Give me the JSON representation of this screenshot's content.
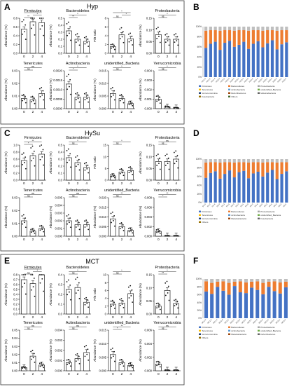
{
  "panel_letters": [
    "A",
    "B",
    "C",
    "D",
    "E",
    "F"
  ],
  "panel_titles": {
    "A": "Hyp",
    "C": "HySu",
    "E": "MCT"
  },
  "bar_x_labels": [
    "0",
    "2",
    "4"
  ],
  "y_labels": {
    "abundance": "Abundance (%)",
    "ratio": "F/B ratio"
  },
  "sig": {
    "ns": "ns",
    "one": "*",
    "two": "**"
  },
  "colors": {
    "bar": "#ffffff",
    "edge": "#000000",
    "dot": "#111111",
    "blue": "#4472c4",
    "orange": "#ed7d31",
    "legend_text": "#333333"
  },
  "chart_data": [
    {
      "panel": "A",
      "type": "bar",
      "subcharts": [
        {
          "title": "Firmicutes",
          "values": [
            0.55,
            0.72,
            0.7
          ],
          "ylim": [
            0,
            0.8
          ],
          "ticks": [
            "0.0",
            "0.2",
            "0.4",
            "0.6",
            "0.8"
          ],
          "sig": [
            "**",
            "*",
            "*"
          ]
        },
        {
          "title": "Bacteroidetes",
          "values": [
            0.32,
            0.2,
            0.17
          ],
          "ylim": [
            0,
            0.5
          ],
          "ticks": [
            "0.0",
            "0.1",
            "0.2",
            "0.3",
            "0.4",
            "0.5"
          ],
          "sig": [
            "**",
            "*"
          ]
        },
        {
          "title": "",
          "ylabel": "ratio",
          "values": [
            1.5,
            4.2,
            3.3
          ],
          "ylim": [
            0,
            8
          ],
          "ticks": [
            "0",
            "2",
            "4",
            "6",
            "8"
          ],
          "sig": [
            "ns",
            "*",
            "*"
          ]
        },
        {
          "title": "Proteobacteria",
          "values": [
            0.08,
            0.06,
            0.06
          ],
          "ylim": [
            0,
            0.15
          ],
          "ticks": [
            "0.00",
            "0.05",
            "0.10",
            "0.15"
          ],
          "sig": [
            "ns",
            "*"
          ]
        },
        {
          "title": "Tenericutes",
          "values": [
            0.008,
            0.007,
            0.012
          ],
          "ylim": [
            0,
            0.03
          ],
          "ticks": [
            "0.00",
            "0.01",
            "0.02",
            "0.03"
          ],
          "sig": [
            "ns",
            "ns"
          ]
        },
        {
          "title": "Actinobacteria",
          "values": [
            0.0013,
            0.0006,
            0.0006
          ],
          "ylim": [
            0,
            0.002
          ],
          "ticks": [
            "0.0000",
            "0.0005",
            "0.0010",
            "0.0015",
            "0.0020"
          ],
          "sig": [
            "*",
            "*"
          ]
        },
        {
          "title": "unidentified_Bacteria",
          "values": [
            0.006,
            0.004,
            0.002
          ],
          "ylim": [
            0,
            0.015
          ],
          "ticks": [
            "0.000",
            "0.005",
            "0.010",
            "0.015"
          ],
          "sig": [
            "ns",
            "*"
          ]
        },
        {
          "title": "Verrucomicrobia",
          "values": [
            0.001,
            0.0002,
            0.0001
          ],
          "ylim": [
            0,
            0.004
          ],
          "ticks": [
            "0.000",
            "0.001",
            "0.002",
            "0.003",
            "0.004"
          ],
          "sig": [
            "ns",
            "*"
          ]
        }
      ]
    },
    {
      "panel": "C",
      "type": "bar",
      "subcharts": [
        {
          "title": "Firmicutes",
          "values": [
            0.56,
            0.7,
            0.74
          ],
          "ylim": [
            0,
            1.0
          ],
          "ticks": [
            "0.0",
            "0.2",
            "0.4",
            "0.6",
            "0.8",
            "1.0"
          ],
          "sig": [
            "*",
            "**"
          ]
        },
        {
          "title": "Bacteroidetes",
          "values": [
            0.32,
            0.25,
            0.18
          ],
          "ylim": [
            0,
            0.5
          ],
          "ticks": [
            "0.0",
            "0.1",
            "0.2",
            "0.3",
            "0.4",
            "0.5"
          ],
          "sig": [
            "ns",
            "*"
          ]
        },
        {
          "title": "",
          "ylabel": "ratio",
          "values": [
            1.8,
            3.5,
            4.1
          ],
          "ylim": [
            0,
            15
          ],
          "ticks": [
            "0",
            "5",
            "10",
            "15"
          ],
          "sig": [
            "ns",
            "*"
          ]
        },
        {
          "title": "Proteobacteria",
          "values": [
            0.08,
            0.08,
            0.09
          ],
          "ylim": [
            0,
            0.15
          ],
          "ticks": [
            "0.00",
            "0.05",
            "0.10",
            "0.15"
          ],
          "sig": [
            "ns",
            "ns"
          ]
        },
        {
          "title": "Tenericutes",
          "values": [
            0.012,
            0.004,
            0.006
          ],
          "ylim": [
            0,
            0.03
          ],
          "ticks": [
            "0.00",
            "0.01",
            "0.02",
            "0.03"
          ],
          "sig": [
            "ns",
            "ns"
          ]
        },
        {
          "title": "Actinobacteria",
          "values": [
            0.002,
            0.0015,
            0.0015
          ],
          "ylim": [
            0,
            0.005
          ],
          "ticks": [
            "0.000",
            "0.001",
            "0.002",
            "0.003",
            "0.004",
            "0.005"
          ],
          "sig": [
            "ns",
            "ns"
          ]
        },
        {
          "title": "unidentified_Bacteria",
          "values": [
            0.009,
            0.005,
            0.003
          ],
          "ylim": [
            0,
            0.02
          ],
          "ticks": [
            "0.000",
            "0.005",
            "0.010",
            "0.015",
            "0.020"
          ],
          "sig": [
            "ns",
            "**"
          ]
        },
        {
          "title": "Verrucomicrobia",
          "values": [
            0.001,
            0.0001,
            0.0001
          ],
          "ylim": [
            0,
            0.008
          ],
          "ticks": [
            "0.000",
            "0.002",
            "0.004",
            "0.006",
            "0.008"
          ],
          "sig": [
            "*",
            "**"
          ]
        }
      ]
    },
    {
      "panel": "E",
      "type": "bar",
      "subcharts": [
        {
          "title": "Firmicutes",
          "values": [
            0.7,
            0.62,
            0.8
          ],
          "ylim": [
            0,
            0.8
          ],
          "ticks": [
            "0.0",
            "0.1",
            "0.2",
            "0.3",
            "0.4",
            "0.5",
            "0.6",
            "0.7",
            "0.8"
          ],
          "sig": [
            "ns",
            "*",
            "*"
          ]
        },
        {
          "title": "Bacteroidetes",
          "values": [
            0.25,
            0.27,
            0.12
          ],
          "ylim": [
            0,
            0.4
          ],
          "ticks": [
            "0.0",
            "0.1",
            "0.2",
            "0.3",
            "0.4"
          ],
          "sig": [
            "ns",
            "*"
          ]
        },
        {
          "title": "",
          "ylabel": "ratio",
          "values": [
            2.5,
            2.8,
            5.2
          ],
          "ylim": [
            0,
            10
          ],
          "ticks": [
            "0",
            "2",
            "4",
            "6",
            "8",
            "10"
          ],
          "sig": [
            "ns",
            "*"
          ]
        },
        {
          "title": "Proteobacteria",
          "values": [
            0.03,
            0.09,
            0.04
          ],
          "ylim": [
            0,
            0.15
          ],
          "ticks": [
            "0.00",
            "0.05",
            "0.10",
            "0.15"
          ],
          "sig": [
            "**",
            "*"
          ]
        },
        {
          "title": "Tenericutes",
          "values": [
            0.004,
            0.018,
            0.007
          ],
          "ylim": [
            0,
            0.05
          ],
          "ticks": [
            "0.00",
            "0.01",
            "0.02",
            "0.03",
            "0.04",
            "0.05"
          ],
          "sig": [
            "ns",
            "ns"
          ]
        },
        {
          "title": "Actinobacteria",
          "values": [
            0.0008,
            0.0012,
            0.0018
          ],
          "ylim": [
            0,
            0.004
          ],
          "ticks": [
            "0.000",
            "0.001",
            "0.002",
            "0.003",
            "0.004"
          ],
          "sig": [
            "ns",
            "ns"
          ]
        },
        {
          "title": "unidentified_Bacteria",
          "values": [
            0.006,
            0.003,
            0.002
          ],
          "ylim": [
            0,
            0.015
          ],
          "ticks": [
            "0.000",
            "0.005",
            "0.010",
            "0.015"
          ],
          "sig": [
            "*",
            "**"
          ]
        },
        {
          "title": "Verrucomicrobia",
          "values": [
            0.001,
            0.0001,
            0.0001
          ],
          "ylim": [
            0,
            0.006
          ],
          "ticks": [
            "0.000",
            "0.002",
            "0.004",
            "0.006"
          ],
          "sig": [
            "ns",
            "ns"
          ]
        }
      ]
    },
    {
      "panel": "B",
      "type": "stacked_bar",
      "categories": [
        "HG1-0",
        "HG1-2",
        "HG1-4",
        "HG2-0",
        "HG2-2",
        "HG2-4",
        "HG3-0",
        "HG3-2",
        "HG3-4",
        "HG4-0",
        "HG4-2",
        "HG4-4",
        "HG5-0",
        "HG5-2",
        "HG5-4",
        "HG6-0",
        "HG6-2",
        "HG6-4"
      ],
      "ticks": [
        "0%",
        "20%",
        "40%",
        "60%",
        "80%",
        "100%"
      ],
      "legend": [
        "Firmicutes",
        "Bacteroidetes",
        "Proteobacteria",
        "Tenericutes",
        "Actinobacteria",
        "unidentified_Bacteria",
        "Verrucomicrobia",
        "Deferribacteres",
        "Melainabacteria",
        "Fusobacteria",
        "Others"
      ],
      "series": [
        {
          "name": "Firmicutes",
          "values": [
            58,
            66,
            70,
            54,
            68,
            72,
            60,
            64,
            70,
            56,
            66,
            71,
            59,
            67,
            73,
            55,
            65,
            69
          ]
        },
        {
          "name": "Bacteroidetes",
          "values": [
            34,
            27,
            23,
            38,
            25,
            21,
            32,
            29,
            23,
            36,
            27,
            22,
            33,
            26,
            20,
            37,
            28,
            24
          ]
        },
        {
          "name": "Others",
          "values": [
            8,
            7,
            7,
            8,
            7,
            7,
            8,
            7,
            7,
            8,
            7,
            7,
            8,
            7,
            7,
            8,
            7,
            7
          ]
        }
      ]
    },
    {
      "panel": "D",
      "type": "stacked_bar",
      "categories": [
        "D1-0",
        "D1-2",
        "D1-4",
        "D2-0",
        "D2-2",
        "D2-4",
        "D3-0",
        "D3-2",
        "D3-4",
        "D4-0",
        "D4-2",
        "D4-4",
        "D5-0",
        "D5-2",
        "D5-4",
        "D6-0",
        "D6-2",
        "D6-4"
      ],
      "ticks": [
        "0%",
        "20%",
        "40%",
        "60%",
        "80%",
        "100%"
      ],
      "legend": [
        "Firmicutes",
        "Bacteroidetes",
        "Proteobacteria",
        "Tenericutes",
        "Actinobacteria",
        "unidentified_Bacteria",
        "Verrucomicrobia",
        "Melainabacteria",
        "Fusobacteria",
        "Others"
      ],
      "series": [
        {
          "name": "Firmicutes",
          "values": [
            57,
            68,
            72,
            55,
            66,
            74,
            58,
            70,
            73,
            56,
            67,
            71,
            60,
            69,
            75,
            54,
            66,
            72
          ]
        },
        {
          "name": "Bacteroidetes",
          "values": [
            35,
            25,
            21,
            37,
            27,
            19,
            34,
            23,
            20,
            36,
            26,
            22,
            32,
            24,
            18,
            38,
            27,
            21
          ]
        },
        {
          "name": "Others",
          "values": [
            8,
            7,
            7,
            8,
            7,
            7,
            8,
            7,
            7,
            8,
            7,
            7,
            8,
            7,
            7,
            8,
            7,
            7
          ]
        }
      ]
    },
    {
      "panel": "F",
      "type": "stacked_bar",
      "categories": [
        "MC1-0",
        "MC1-2",
        "MC1-4",
        "MC2-0",
        "MC2-2",
        "MC2-4",
        "MC3-0",
        "MC3-2",
        "MC3-4",
        "MC4-0",
        "MC4-2",
        "MC4-4",
        "MC5-0",
        "MC5-2",
        "MC5-4"
      ],
      "ticks": [
        "0%",
        "20%",
        "40%",
        "60%",
        "80%",
        "100%"
      ],
      "legend": [
        "Firmicutes",
        "Bacteroidetes",
        "Proteobacteria",
        "Tenericutes",
        "Actinobacteria",
        "unidentified_Bacteria",
        "Verrucomicrobia",
        "Melainabacteria",
        "Deferribacteres",
        "Others"
      ],
      "series": [
        {
          "name": "Firmicutes",
          "values": [
            68,
            62,
            80,
            70,
            60,
            82,
            66,
            64,
            78,
            72,
            61,
            80,
            69,
            63,
            79
          ]
        },
        {
          "name": "Bacteroidetes",
          "values": [
            26,
            28,
            13,
            24,
            30,
            11,
            28,
            27,
            15,
            22,
            29,
            13,
            25,
            28,
            14
          ]
        },
        {
          "name": "Others",
          "values": [
            6,
            10,
            7,
            6,
            10,
            7,
            6,
            9,
            7,
            6,
            10,
            7,
            6,
            9,
            7
          ]
        }
      ]
    }
  ]
}
